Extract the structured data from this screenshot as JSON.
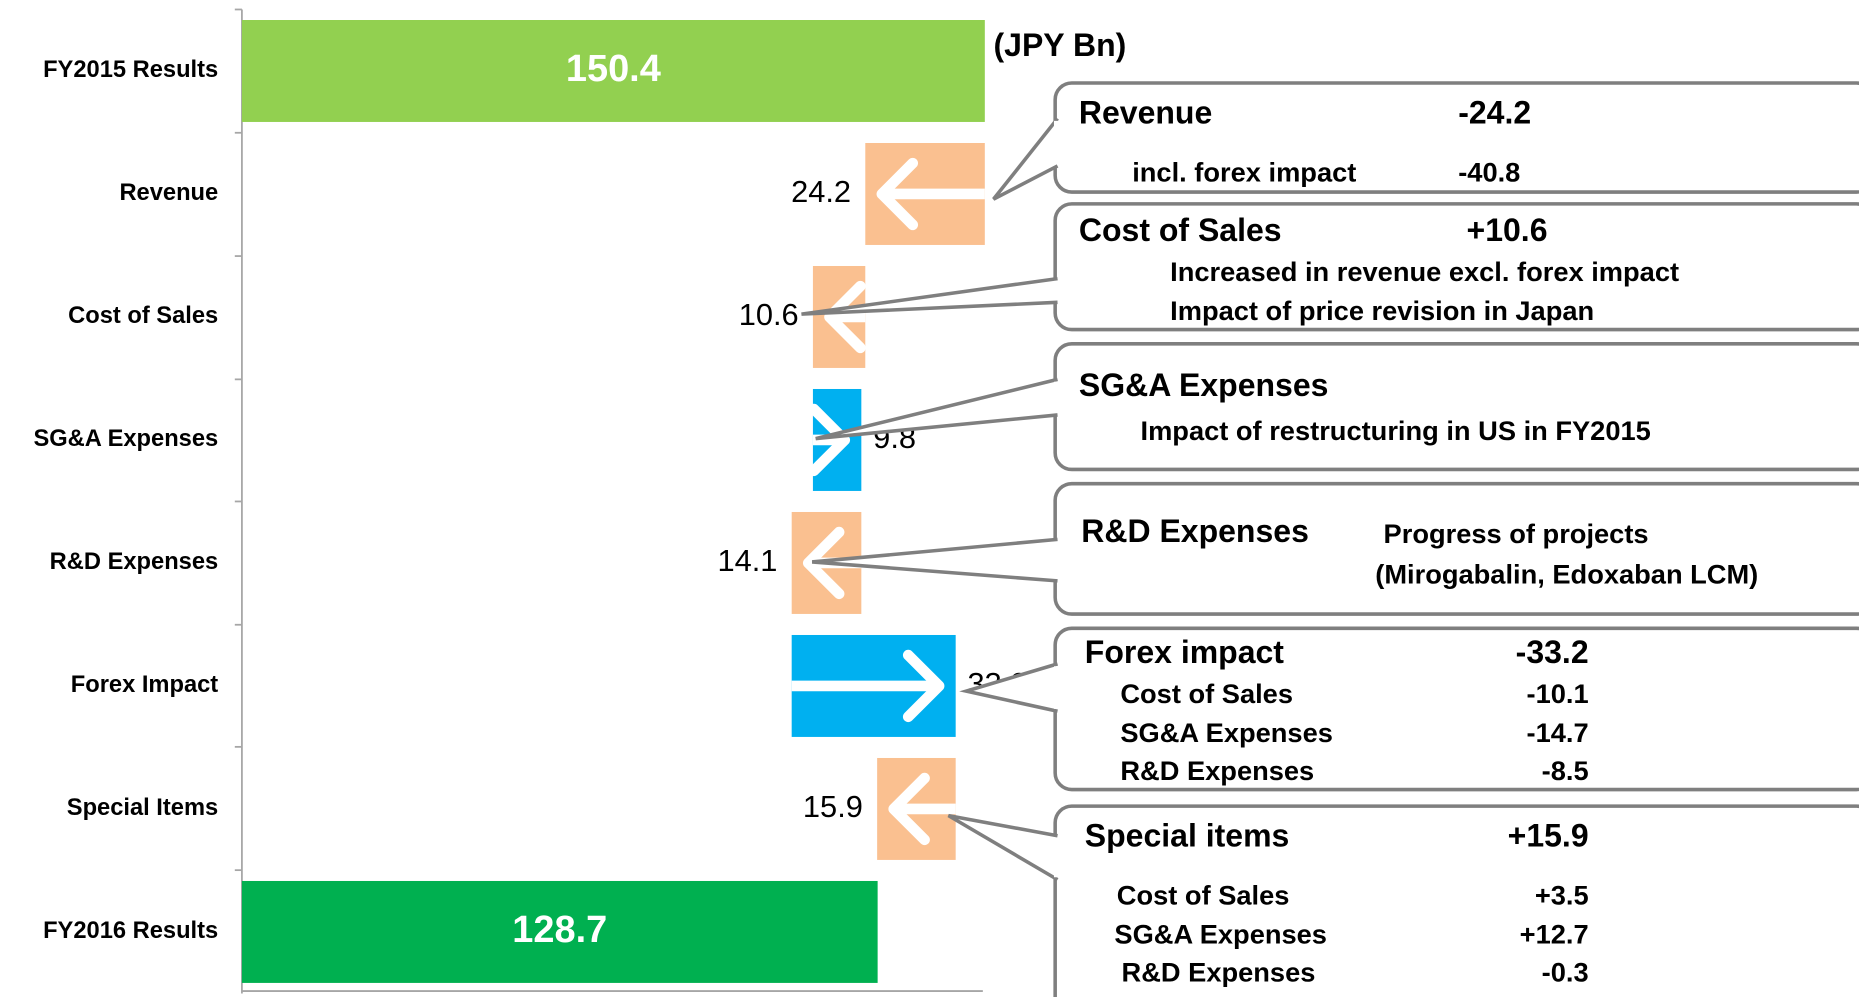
{
  "chart_data": {
    "type": "waterfall",
    "unit_label": "(JPY Bn)",
    "categories": [
      "FY2015 Results",
      "Revenue",
      "Cost of Sales",
      "SG&A Expenses",
      "R&D Expenses",
      "Forex Impact",
      "Special Items",
      "FY2016 Results"
    ],
    "values": [
      150.4,
      -24.2,
      -10.6,
      9.8,
      -14.1,
      33.2,
      -15.9,
      128.7
    ],
    "value_labels": [
      "150.4",
      "24.2",
      "10.6",
      "9.8",
      "14.1",
      "33.2",
      "15.9",
      "128.7"
    ],
    "colors": [
      "#92d050",
      "#fac090",
      "#fac090",
      "#00b0f0",
      "#fac090",
      "#00b0f0",
      "#fac090",
      "#00b050"
    ],
    "xlim": [
      0,
      150
    ]
  },
  "callouts": [
    {
      "title": "Revenue",
      "value": "-24.2",
      "lines": [
        {
          "text": "incl. forex impact",
          "value": "-40.8"
        }
      ]
    },
    {
      "title": "Cost of Sales",
      "value": "+10.6",
      "lines": [
        {
          "text": "Increased in revenue excl. forex impact"
        },
        {
          "text": "Impact of price revision in Japan"
        }
      ]
    },
    {
      "title": "SG&A Expenses",
      "lines": [
        {
          "text": "Impact of restructuring in US in FY2015"
        }
      ]
    },
    {
      "title": "R&D Expenses",
      "lines": [
        {
          "text": "Progress of projects"
        },
        {
          "text": "(Mirogabalin, Edoxaban LCM)"
        }
      ]
    },
    {
      "title": "Forex impact",
      "value": "-33.2",
      "lines": [
        {
          "text": "Cost of Sales",
          "value": "-10.1"
        },
        {
          "text": "SG&A Expenses",
          "value": "-14.7"
        },
        {
          "text": "R&D Expenses",
          "value": "-8.5"
        }
      ]
    },
    {
      "title": "Special items",
      "value": "+15.9",
      "lines": [
        {
          "text": "Cost of Sales",
          "value": "+3.5"
        },
        {
          "text": "SG&A Expenses",
          "value": "+12.7"
        },
        {
          "text": "R&D Expenses",
          "value": "-0.3"
        }
      ]
    }
  ]
}
